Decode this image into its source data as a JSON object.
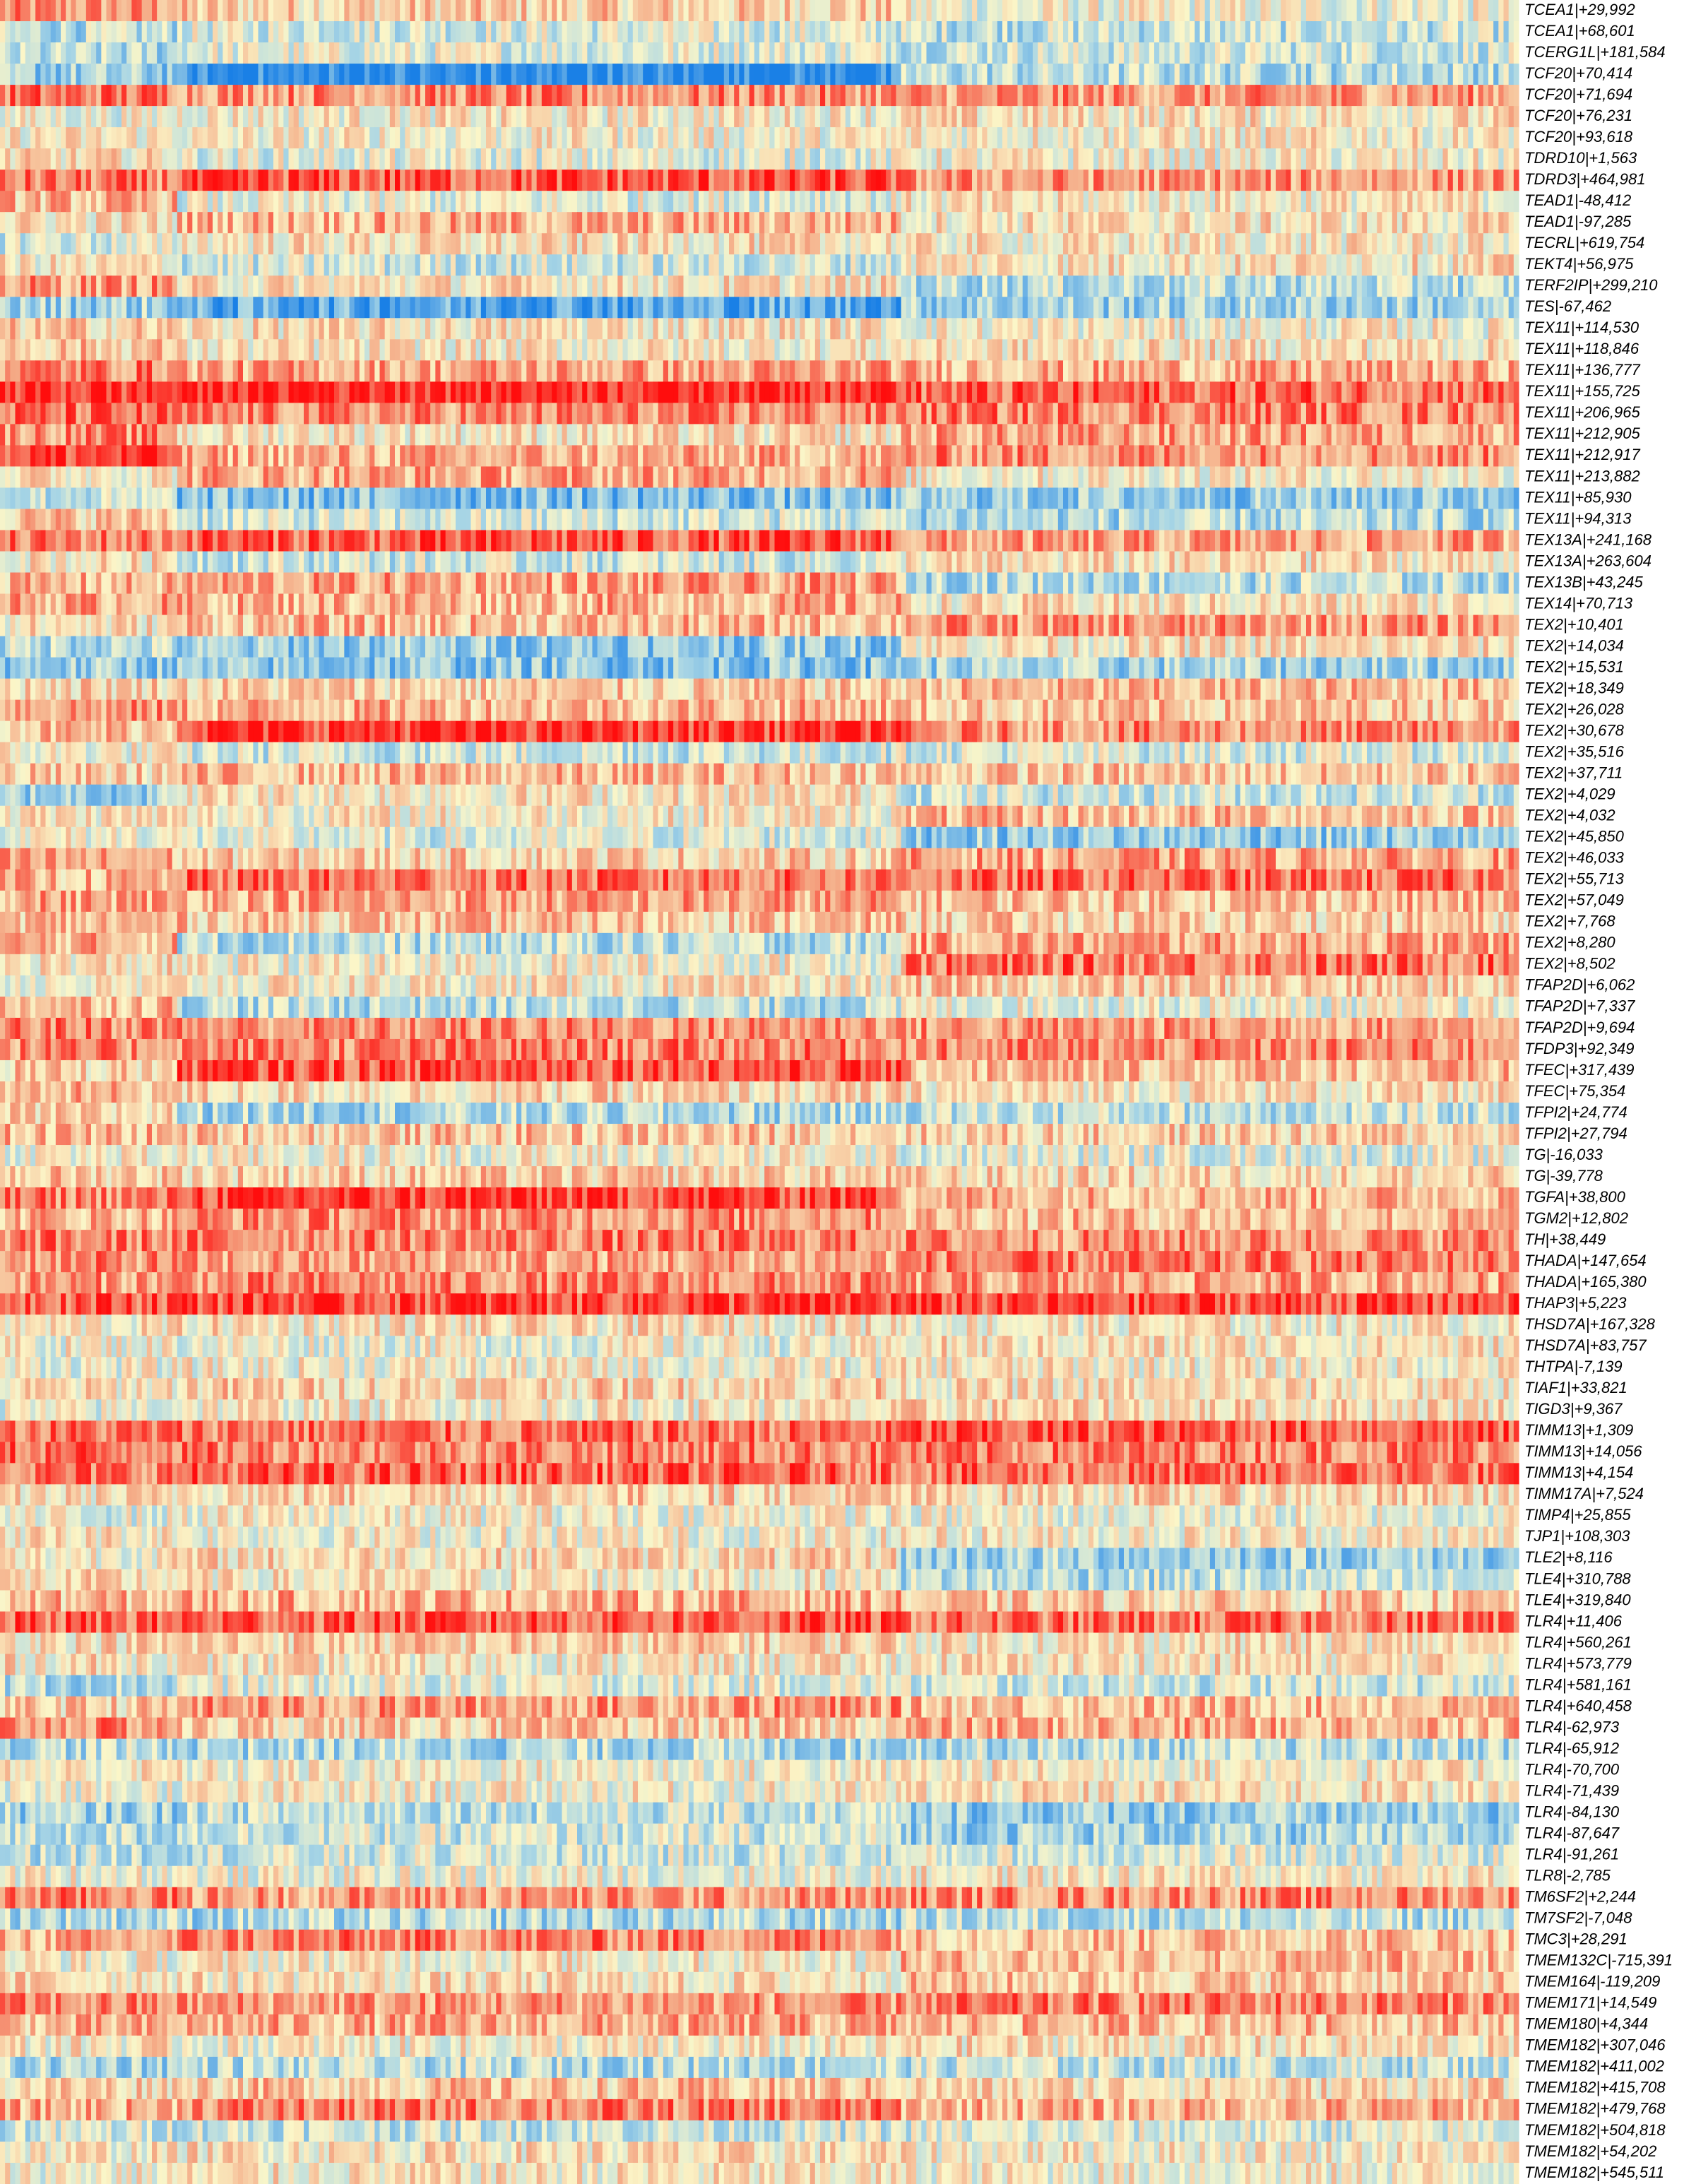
{
  "chart_data": {
    "type": "heatmap",
    "title": "",
    "xlabel": "",
    "ylabel": "",
    "colormap": {
      "low": "#1a80e6",
      "mid_low": "#a9d6e5",
      "mid": "#fbf6c8",
      "mid_high": "#f4a582",
      "high": "#ff0d0d"
    },
    "value_range": [
      -1,
      1
    ],
    "num_columns": 300,
    "column_groups": [
      {
        "count": 35,
        "label": ""
      },
      {
        "count": 143,
        "label": ""
      },
      {
        "count": 122,
        "label": ""
      }
    ],
    "rows": [
      {
        "label": "TCEA1|+29,992",
        "group_means": [
          0.45,
          0.2,
          -0.05
        ]
      },
      {
        "label": "TCEA1|+68,601",
        "group_means": [
          -0.3,
          -0.15,
          -0.25
        ]
      },
      {
        "label": "TCERG1L|+181,584",
        "group_means": [
          -0.35,
          -0.1,
          -0.2
        ]
      },
      {
        "label": "TCF20|+70,414",
        "group_means": [
          -0.45,
          -0.95,
          -0.3
        ]
      },
      {
        "label": "TCF20|+71,694",
        "group_means": [
          0.6,
          0.5,
          0.45
        ]
      },
      {
        "label": "TCF20|+76,231",
        "group_means": [
          -0.05,
          0.05,
          0.1
        ]
      },
      {
        "label": "TCF20|+93,618",
        "group_means": [
          0.05,
          0.0,
          0.05
        ]
      },
      {
        "label": "TDRD10|+1,563",
        "group_means": [
          0.1,
          -0.1,
          0.0
        ]
      },
      {
        "label": "TDRD3|+464,981",
        "group_means": [
          0.55,
          0.7,
          0.45
        ]
      },
      {
        "label": "TEAD1|-48,412",
        "group_means": [
          0.3,
          -0.1,
          0.05
        ]
      },
      {
        "label": "TEAD1|-97,285",
        "group_means": [
          0.1,
          0.35,
          0.1
        ]
      },
      {
        "label": "TECRL|+619,754",
        "group_means": [
          -0.15,
          0.1,
          0.05
        ]
      },
      {
        "label": "TEKT4|+56,975",
        "group_means": [
          0.05,
          -0.2,
          0.1
        ]
      },
      {
        "label": "TERF2IP|+299,210",
        "group_means": [
          0.45,
          0.1,
          -0.3
        ]
      },
      {
        "label": "TES|-67,462",
        "group_means": [
          -0.4,
          -0.7,
          -0.4
        ]
      },
      {
        "label": "TEX11|+114,530",
        "group_means": [
          0.2,
          0.1,
          0.0
        ]
      },
      {
        "label": "TEX11|+118,846",
        "group_means": [
          0.25,
          0.05,
          0.1
        ]
      },
      {
        "label": "TEX11|+136,777",
        "group_means": [
          0.55,
          0.4,
          0.35
        ]
      },
      {
        "label": "TEX11|+155,725",
        "group_means": [
          0.85,
          0.95,
          0.65
        ]
      },
      {
        "label": "TEX11|+206,965",
        "group_means": [
          0.6,
          0.5,
          0.55
        ]
      },
      {
        "label": "TEX11|+212,905",
        "group_means": [
          0.5,
          0.1,
          0.4
        ]
      },
      {
        "label": "TEX11|+212,917",
        "group_means": [
          0.8,
          0.35,
          0.5
        ]
      },
      {
        "label": "TEX11|+213,882",
        "group_means": [
          0.1,
          0.4,
          0.05
        ]
      },
      {
        "label": "TEX11|+85,930",
        "group_means": [
          -0.25,
          -0.55,
          -0.45
        ]
      },
      {
        "label": "TEX11|+94,313",
        "group_means": [
          0.25,
          -0.2,
          -0.35
        ]
      },
      {
        "label": "TEX13A|+241,168",
        "group_means": [
          0.55,
          0.7,
          0.4
        ]
      },
      {
        "label": "TEX13A|+263,604",
        "group_means": [
          0.1,
          -0.2,
          0.1
        ]
      },
      {
        "label": "TEX13B|+43,245",
        "group_means": [
          0.3,
          0.4,
          -0.3
        ]
      },
      {
        "label": "TEX14|+70,713",
        "group_means": [
          0.4,
          0.35,
          0.1
        ]
      },
      {
        "label": "TEX2|+10,401",
        "group_means": [
          0.1,
          0.3,
          0.45
        ]
      },
      {
        "label": "TEX2|+14,034",
        "group_means": [
          -0.3,
          -0.45,
          0.1
        ]
      },
      {
        "label": "TEX2|+15,531",
        "group_means": [
          -0.45,
          -0.5,
          -0.4
        ]
      },
      {
        "label": "TEX2|+18,349",
        "group_means": [
          0.2,
          0.2,
          0.3
        ]
      },
      {
        "label": "TEX2|+26,028",
        "group_means": [
          0.45,
          0.35,
          0.25
        ]
      },
      {
        "label": "TEX2|+30,678",
        "group_means": [
          0.3,
          0.85,
          0.5
        ]
      },
      {
        "label": "TEX2|+35,516",
        "group_means": [
          0.0,
          -0.2,
          -0.15
        ]
      },
      {
        "label": "TEX2|+37,711",
        "group_means": [
          0.2,
          0.3,
          0.25
        ]
      },
      {
        "label": "TEX2|+4,029",
        "group_means": [
          -0.4,
          0.1,
          -0.2
        ]
      },
      {
        "label": "TEX2|+4,032",
        "group_means": [
          0.1,
          0.05,
          0.3
        ]
      },
      {
        "label": "TEX2|+45,850",
        "group_means": [
          0.0,
          -0.15,
          -0.45
        ]
      },
      {
        "label": "TEX2|+46,033",
        "group_means": [
          0.35,
          0.2,
          0.4
        ]
      },
      {
        "label": "TEX2|+55,713",
        "group_means": [
          0.3,
          0.6,
          0.6
        ]
      },
      {
        "label": "TEX2|+57,049",
        "group_means": [
          0.4,
          0.4,
          0.3
        ]
      },
      {
        "label": "TEX2|+7,768",
        "group_means": [
          0.3,
          0.25,
          0.2
        ]
      },
      {
        "label": "TEX2|+8,280",
        "group_means": [
          0.35,
          -0.3,
          0.4
        ]
      },
      {
        "label": "TEX2|+8,502",
        "group_means": [
          0.1,
          0.0,
          0.6
        ]
      },
      {
        "label": "TFAP2D|+6,062",
        "group_means": [
          0.0,
          0.05,
          0.2
        ]
      },
      {
        "label": "TFAP2D|+7,337",
        "group_means": [
          0.35,
          -0.3,
          -0.05
        ]
      },
      {
        "label": "TFAP2D|+9,694",
        "group_means": [
          0.55,
          0.5,
          0.45
        ]
      },
      {
        "label": "TFDP3|+92,349",
        "group_means": [
          0.5,
          0.55,
          0.5
        ]
      },
      {
        "label": "TFEC|+317,439",
        "group_means": [
          0.2,
          0.75,
          0.3
        ]
      },
      {
        "label": "TFEC|+75,354",
        "group_means": [
          0.3,
          0.15,
          0.1
        ]
      },
      {
        "label": "TFPI2|+24,774",
        "group_means": [
          0.15,
          -0.35,
          -0.25
        ]
      },
      {
        "label": "TFPI2|+27,794",
        "group_means": [
          0.3,
          0.25,
          0.2
        ]
      },
      {
        "label": "TG|-16,033",
        "group_means": [
          0.0,
          0.0,
          -0.1
        ]
      },
      {
        "label": "TG|-39,778",
        "group_means": [
          0.25,
          0.2,
          0.15
        ]
      },
      {
        "label": "TGFA|+38,800",
        "group_means": [
          0.55,
          0.8,
          0.35
        ]
      },
      {
        "label": "TGM2|+12,802",
        "group_means": [
          0.35,
          0.5,
          0.3
        ]
      },
      {
        "label": "TH|+38,449",
        "group_means": [
          0.55,
          0.55,
          0.5
        ]
      },
      {
        "label": "THADA|+147,654",
        "group_means": [
          0.5,
          0.4,
          0.55
        ]
      },
      {
        "label": "THADA|+165,380",
        "group_means": [
          0.45,
          0.5,
          0.4
        ]
      },
      {
        "label": "THAP3|+5,223",
        "group_means": [
          0.75,
          0.8,
          0.75
        ]
      },
      {
        "label": "THSD7A|+167,328",
        "group_means": [
          0.05,
          0.1,
          0.05
        ]
      },
      {
        "label": "THSD7A|+83,757",
        "group_means": [
          0.0,
          -0.05,
          0.1
        ]
      },
      {
        "label": "THTPA|-7,139",
        "group_means": [
          -0.05,
          0.0,
          0.05
        ]
      },
      {
        "label": "TIAF1|+33,821",
        "group_means": [
          0.1,
          0.2,
          0.1
        ]
      },
      {
        "label": "TIGD3|+9,367",
        "group_means": [
          -0.1,
          0.05,
          0.15
        ]
      },
      {
        "label": "TIMM13|+1,309",
        "group_means": [
          0.6,
          0.6,
          0.7
        ]
      },
      {
        "label": "TIMM13|+14,056",
        "group_means": [
          0.65,
          0.55,
          0.55
        ]
      },
      {
        "label": "TIMM13|+4,154",
        "group_means": [
          0.6,
          0.65,
          0.6
        ]
      },
      {
        "label": "TIMM17A|+7,524",
        "group_means": [
          0.1,
          0.2,
          0.15
        ]
      },
      {
        "label": "TIMP4|+25,855",
        "group_means": [
          -0.1,
          0.0,
          -0.05
        ]
      },
      {
        "label": "TJP1|+108,303",
        "group_means": [
          0.1,
          0.0,
          0.05
        ]
      },
      {
        "label": "TLE2|+8,116",
        "group_means": [
          0.05,
          0.15,
          -0.4
        ]
      },
      {
        "label": "TLE4|+310,788",
        "group_means": [
          0.1,
          0.05,
          -0.3
        ]
      },
      {
        "label": "TLE4|+319,840",
        "group_means": [
          0.3,
          0.35,
          0.2
        ]
      },
      {
        "label": "TLR4|+11,406",
        "group_means": [
          0.65,
          0.7,
          0.6
        ]
      },
      {
        "label": "TLR4|+560,261",
        "group_means": [
          0.15,
          0.2,
          0.1
        ]
      },
      {
        "label": "TLR4|+573,779",
        "group_means": [
          0.1,
          0.05,
          0.1
        ]
      },
      {
        "label": "TLR4|+581,161",
        "group_means": [
          -0.3,
          -0.1,
          -0.2
        ]
      },
      {
        "label": "TLR4|+640,458",
        "group_means": [
          0.2,
          0.45,
          0.3
        ]
      },
      {
        "label": "TLR4|-62,973",
        "group_means": [
          0.5,
          0.2,
          0.35
        ]
      },
      {
        "label": "TLR4|-65,912",
        "group_means": [
          -0.3,
          -0.35,
          -0.3
        ]
      },
      {
        "label": "TLR4|-70,700",
        "group_means": [
          0.05,
          0.0,
          0.05
        ]
      },
      {
        "label": "TLR4|-71,439",
        "group_means": [
          -0.05,
          0.0,
          0.1
        ]
      },
      {
        "label": "TLR4|-84,130",
        "group_means": [
          -0.4,
          -0.25,
          -0.45
        ]
      },
      {
        "label": "TLR4|-87,647",
        "group_means": [
          -0.3,
          -0.2,
          -0.4
        ]
      },
      {
        "label": "TLR4|-91,261",
        "group_means": [
          -0.25,
          -0.2,
          -0.15
        ]
      },
      {
        "label": "TLR8|-2,785",
        "group_means": [
          0.0,
          -0.05,
          0.05
        ]
      },
      {
        "label": "TM6SF2|+2,244",
        "group_means": [
          0.55,
          0.45,
          0.5
        ]
      },
      {
        "label": "TM7SF2|-7,048",
        "group_means": [
          -0.3,
          -0.35,
          -0.3
        ]
      },
      {
        "label": "TMC3|+28,291",
        "group_means": [
          0.35,
          0.55,
          0.3
        ]
      },
      {
        "label": "TMEM132C|-715,391",
        "group_means": [
          0.0,
          0.05,
          0.3
        ]
      },
      {
        "label": "TMEM164|-119,209",
        "group_means": [
          0.15,
          0.1,
          0.25
        ]
      },
      {
        "label": "TMEM171|+14,549",
        "group_means": [
          0.5,
          0.45,
          0.55
        ]
      },
      {
        "label": "TMEM180|+4,344",
        "group_means": [
          0.3,
          0.35,
          0.3
        ]
      },
      {
        "label": "TMEM182|+307,046",
        "group_means": [
          0.05,
          0.0,
          0.1
        ]
      },
      {
        "label": "TMEM182|+411,002",
        "group_means": [
          -0.35,
          -0.3,
          -0.25
        ]
      },
      {
        "label": "TMEM182|+415,708",
        "group_means": [
          0.2,
          0.25,
          0.15
        ]
      },
      {
        "label": "TMEM182|+479,768",
        "group_means": [
          0.35,
          0.55,
          0.35
        ]
      },
      {
        "label": "TMEM182|+504,818",
        "group_means": [
          -0.2,
          -0.2,
          -0.15
        ]
      },
      {
        "label": "TMEM182|+54,202",
        "group_means": [
          0.05,
          0.1,
          0.05
        ]
      },
      {
        "label": "TMEM182|+545,511",
        "group_means": [
          0.0,
          0.05,
          0.0
        ]
      }
    ]
  }
}
